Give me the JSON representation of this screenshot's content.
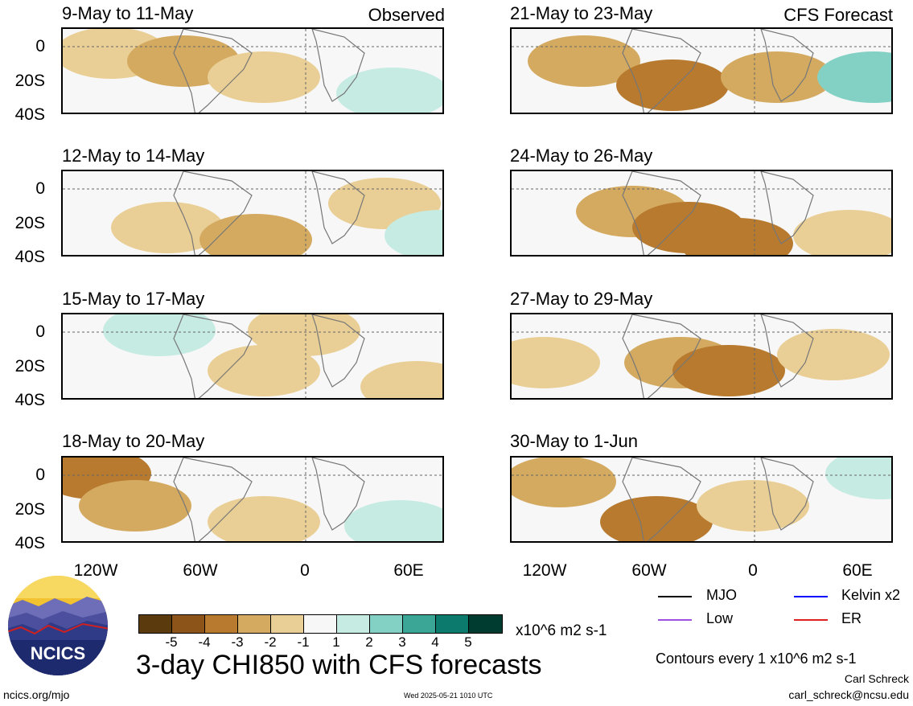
{
  "panels": [
    {
      "title": "9-May to 11-May",
      "source": "Observed"
    },
    {
      "title": "12-May to 14-May"
    },
    {
      "title": "15-May to 17-May"
    },
    {
      "title": "18-May to 20-May"
    },
    {
      "title": "21-May to 23-May",
      "source": "CFS Forecast"
    },
    {
      "title": "24-May to 26-May"
    },
    {
      "title": "27-May to 29-May"
    },
    {
      "title": "30-May to 1-Jun"
    }
  ],
  "lat_labels": [
    "0",
    "20S",
    "40S"
  ],
  "lon_labels": [
    "120W",
    "60W",
    "0",
    "60E"
  ],
  "colorbar": {
    "ticks": [
      "-5",
      "-4",
      "-3",
      "-2",
      "-1",
      "1",
      "2",
      "3",
      "4",
      "5"
    ],
    "colors": [
      "#5b3a0e",
      "#8c5418",
      "#b77a2f",
      "#d4aa61",
      "#e9cf95",
      "#f7f3e9",
      "#f7f7f7",
      "#c6ebe3",
      "#83d1c4",
      "#3ba596",
      "#0c7a6c",
      "#003c30"
    ],
    "units": "x10^6 m2 s-1"
  },
  "main_title": "3-day CHI850 with CFS forecasts",
  "legend": [
    {
      "label": "MJO",
      "color": "#000000"
    },
    {
      "label": "Kelvin x2",
      "color": "#0000ff"
    },
    {
      "label": "Low",
      "color": "#a050e0"
    },
    {
      "label": "ER",
      "color": "#e02020"
    }
  ],
  "contour_note": "Contours every 1 x10^6 m2 s-1",
  "author": "Carl Schreck",
  "email": "carl_schreck@ncsu.edu",
  "website": "ncics.org/mjo",
  "timestamp": "Wed 2025-05-21 1010 UTC",
  "logo_text": "NCICS"
}
